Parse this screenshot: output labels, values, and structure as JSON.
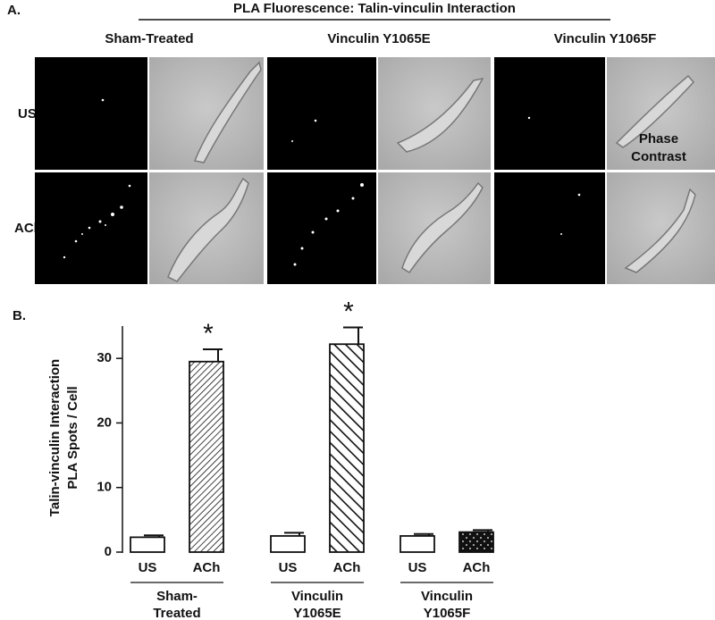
{
  "panel_a": {
    "label": "A.",
    "title": "PLA Fluorescence:   Talin-vinculin Interaction",
    "columns": [
      "Sham-Treated",
      "Vinculin Y1065E",
      "Vinculin Y1065F"
    ],
    "rows": [
      "US",
      "ACh"
    ],
    "overlay": [
      "Phase",
      "Contrast"
    ]
  },
  "chart_data": {
    "type": "bar",
    "label": "B.",
    "ylabel": [
      "Talin-vinculin Interaction",
      "PLA Spots / Cell"
    ],
    "categories": [
      "US",
      "ACh",
      "US",
      "ACh",
      "US",
      "ACh"
    ],
    "groups": [
      [
        "Sham-",
        "Treated"
      ],
      [
        "Vinculin",
        "Y1065E"
      ],
      [
        "Vinculin",
        "Y1065F"
      ]
    ],
    "values": [
      2.3,
      29.5,
      2.5,
      32.2,
      2.5,
      3.1
    ],
    "errors": [
      0.3,
      1.9,
      0.5,
      2.6,
      0.3,
      0.3
    ],
    "significance": [
      null,
      "*",
      null,
      "*",
      null,
      null
    ],
    "patterns": [
      "solid-white",
      "hatch-fine",
      "solid-white",
      "hatch-wide",
      "solid-white",
      "dots"
    ],
    "ylim": [
      0,
      35
    ],
    "yticks": [
      0,
      10,
      20,
      30
    ]
  }
}
